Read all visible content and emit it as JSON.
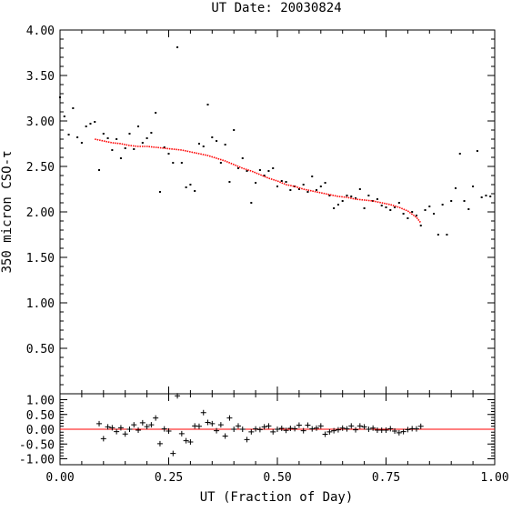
{
  "chart_data": [
    {
      "type": "scatter",
      "panel": "main",
      "title": "UT Date: 20030824",
      "xlabel": "",
      "ylabel": "350 micron CSO-τ",
      "xlim": [
        0,
        1
      ],
      "ylim": [
        0,
        4
      ],
      "yticks": [
        "0.50",
        "1.00",
        "1.50",
        "2.00",
        "2.50",
        "3.00",
        "3.50",
        "4.00"
      ],
      "grid": false,
      "series": [
        {
          "marker": "dot",
          "color": "#000000",
          "x": [
            0.0,
            0.01,
            0.02,
            0.03,
            0.04,
            0.05,
            0.06,
            0.07,
            0.08,
            0.09,
            0.1,
            0.11,
            0.12,
            0.13,
            0.14,
            0.15,
            0.16,
            0.17,
            0.18,
            0.19,
            0.2,
            0.21,
            0.22,
            0.23,
            0.24,
            0.25,
            0.26,
            0.27,
            0.28,
            0.29,
            0.3,
            0.31,
            0.32,
            0.33,
            0.34,
            0.35,
            0.36,
            0.37,
            0.38,
            0.39,
            0.4,
            0.41,
            0.42,
            0.43,
            0.44,
            0.45,
            0.46,
            0.47,
            0.48,
            0.49,
            0.5,
            0.51,
            0.52,
            0.53,
            0.54,
            0.55,
            0.56,
            0.57,
            0.58,
            0.59,
            0.6,
            0.61,
            0.62,
            0.63,
            0.64,
            0.65,
            0.66,
            0.67,
            0.68,
            0.69,
            0.7,
            0.71,
            0.72,
            0.73,
            0.74,
            0.75,
            0.76,
            0.77,
            0.78,
            0.79,
            0.8,
            0.81,
            0.82,
            0.83,
            0.84,
            0.85,
            0.86,
            0.87,
            0.88,
            0.89,
            0.9,
            0.91,
            0.92,
            0.93,
            0.94,
            0.95,
            0.96,
            0.97,
            0.98,
            0.99
          ],
          "y": [
            3.26,
            3.05,
            2.85,
            3.14,
            2.82,
            2.76,
            2.94,
            2.97,
            2.99,
            2.46,
            2.86,
            2.81,
            2.68,
            2.8,
            2.59,
            2.7,
            2.86,
            2.69,
            2.94,
            2.76,
            2.81,
            2.87,
            3.09,
            2.22,
            2.71,
            2.64,
            2.54,
            3.81,
            2.54,
            2.27,
            2.3,
            2.23,
            2.75,
            2.72,
            3.18,
            2.82,
            2.78,
            2.54,
            2.74,
            2.33,
            2.9,
            2.48,
            2.59,
            2.45,
            2.1,
            2.32,
            2.46,
            2.4,
            2.45,
            2.48,
            2.28,
            2.34,
            2.33,
            2.24,
            2.28,
            2.25,
            2.3,
            2.22,
            2.39,
            2.24,
            2.28,
            2.32,
            2.18,
            2.04,
            2.08,
            2.12,
            2.18,
            2.17,
            2.15,
            2.25,
            2.04,
            2.18,
            2.12,
            2.14,
            2.07,
            2.05,
            2.02,
            2.05,
            2.1,
            1.98,
            1.93,
            2.0,
            1.96,
            1.85,
            2.02,
            2.06,
            1.98,
            1.75,
            2.08,
            1.75,
            2.12,
            2.26,
            2.64,
            2.12,
            2.03,
            2.28,
            2.67,
            2.16,
            2.18,
            2.17
          ]
        },
        {
          "name": "fit",
          "marker": "line",
          "color": "#ff0000",
          "x": [
            0.08,
            0.1,
            0.12,
            0.14,
            0.16,
            0.18,
            0.2,
            0.22,
            0.24,
            0.26,
            0.28,
            0.3,
            0.32,
            0.34,
            0.36,
            0.38,
            0.4,
            0.42,
            0.44,
            0.46,
            0.48,
            0.5,
            0.52,
            0.54,
            0.56,
            0.58,
            0.6,
            0.62,
            0.64,
            0.66,
            0.68,
            0.7,
            0.72,
            0.74,
            0.76,
            0.78,
            0.8,
            0.82,
            0.83
          ],
          "y": [
            2.8,
            2.78,
            2.76,
            2.75,
            2.73,
            2.72,
            2.72,
            2.71,
            2.7,
            2.69,
            2.68,
            2.66,
            2.64,
            2.62,
            2.59,
            2.56,
            2.52,
            2.48,
            2.45,
            2.41,
            2.37,
            2.34,
            2.3,
            2.28,
            2.25,
            2.23,
            2.21,
            2.19,
            2.17,
            2.16,
            2.14,
            2.13,
            2.12,
            2.1,
            2.08,
            2.05,
            2.01,
            1.94,
            1.88
          ]
        }
      ]
    },
    {
      "type": "scatter",
      "panel": "residuals",
      "xlabel": "UT (Fraction of Day)",
      "ylabel": "",
      "xlim": [
        0,
        1
      ],
      "ylim": [
        -1.2,
        1.2
      ],
      "xticks": [
        "0.00",
        "0.25",
        "0.50",
        "0.75",
        "1.00"
      ],
      "yticks": [
        "-1.00",
        "-0.50",
        "0.00",
        "0.50",
        "1.00"
      ],
      "zero_line_color": "#ff0000",
      "series": [
        {
          "marker": "plus",
          "color": "#000000",
          "x": [
            0.09,
            0.1,
            0.11,
            0.12,
            0.13,
            0.14,
            0.15,
            0.16,
            0.17,
            0.18,
            0.19,
            0.2,
            0.21,
            0.22,
            0.23,
            0.24,
            0.25,
            0.26,
            0.27,
            0.28,
            0.29,
            0.3,
            0.31,
            0.32,
            0.33,
            0.34,
            0.35,
            0.36,
            0.37,
            0.38,
            0.39,
            0.4,
            0.41,
            0.42,
            0.43,
            0.44,
            0.45,
            0.46,
            0.47,
            0.48,
            0.49,
            0.5,
            0.51,
            0.52,
            0.53,
            0.54,
            0.55,
            0.56,
            0.57,
            0.58,
            0.59,
            0.6,
            0.61,
            0.62,
            0.63,
            0.64,
            0.65,
            0.66,
            0.67,
            0.68,
            0.69,
            0.7,
            0.71,
            0.72,
            0.73,
            0.74,
            0.75,
            0.76,
            0.77,
            0.78,
            0.79,
            0.8,
            0.81,
            0.82,
            0.83
          ],
          "y": [
            0.19,
            -0.32,
            0.08,
            0.05,
            -0.08,
            0.05,
            -0.16,
            0.0,
            0.15,
            -0.03,
            0.22,
            0.09,
            0.15,
            0.38,
            -0.49,
            0.01,
            -0.06,
            -0.82,
            1.13,
            -0.15,
            -0.39,
            -0.43,
            0.11,
            0.1,
            0.56,
            0.23,
            0.19,
            -0.05,
            0.15,
            -0.23,
            0.38,
            0.0,
            0.11,
            0.0,
            -0.35,
            -0.09,
            0.01,
            -0.01,
            0.08,
            0.11,
            -0.09,
            0.0,
            0.03,
            -0.04,
            0.03,
            0.02,
            0.14,
            -0.05,
            0.14,
            0.01,
            0.04,
            0.11,
            -0.17,
            -0.09,
            -0.05,
            -0.02,
            0.04,
            0.01,
            0.11,
            -0.02,
            0.11,
            0.08,
            0.0,
            0.04,
            -0.03,
            -0.03,
            -0.03,
            0.02,
            -0.06,
            -0.12,
            -0.08,
            -0.01,
            0.02,
            0.01,
            0.1
          ]
        }
      ]
    }
  ]
}
